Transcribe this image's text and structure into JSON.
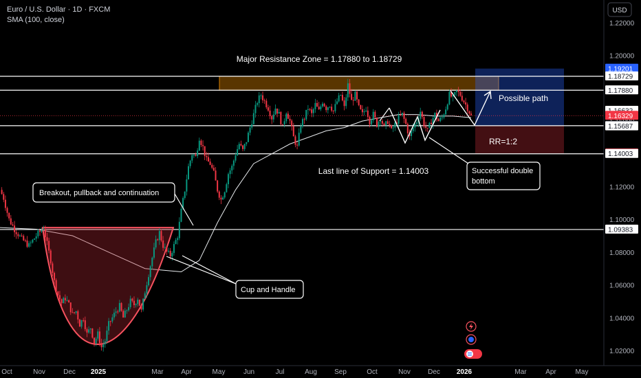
{
  "header": {
    "symbol_line": "Euro / U.S. Dollar · 1D · FXCM",
    "indicator_line": "SMA (100, close)",
    "currency_button": "USD"
  },
  "chart_data": {
    "type": "candlestick",
    "title": "Euro / U.S. Dollar · 1D · FXCM",
    "indicator": "SMA (100, close)",
    "y_axis": {
      "range": [
        1.01,
        1.235
      ],
      "ticks": [
        "1.22000",
        "1.20000",
        "1.18000",
        "1.16000",
        "1.14000",
        "1.12000",
        "1.10000",
        "1.08000",
        "1.06000",
        "1.04000",
        "1.02000"
      ],
      "tick_values": [
        1.22,
        1.2,
        1.18,
        1.16,
        1.14,
        1.12,
        1.1,
        1.08,
        1.06,
        1.04,
        1.02
      ]
    },
    "x_axis": {
      "ticks": [
        "Oct",
        "Nov",
        "Dec",
        "2025",
        "Mar",
        "Apr",
        "May",
        "Jun",
        "Jul",
        "Aug",
        "Sep",
        "Oct",
        "Nov",
        "Dec",
        "2026",
        "Mar",
        "Apr",
        "May"
      ],
      "bold_ticks": [
        "2025",
        "2026"
      ]
    },
    "price_path": [
      [
        0,
        1.118
      ],
      [
        2,
        1.113
      ],
      [
        5,
        1.1
      ],
      [
        8,
        1.094
      ],
      [
        12,
        1.088
      ],
      [
        16,
        1.084
      ],
      [
        20,
        1.09
      ],
      [
        24,
        1.095
      ],
      [
        26,
        1.085
      ],
      [
        28,
        1.075
      ],
      [
        30,
        1.062
      ],
      [
        32,
        1.054
      ],
      [
        34,
        1.049
      ],
      [
        36,
        1.052
      ],
      [
        38,
        1.048
      ],
      [
        40,
        1.042
      ],
      [
        42,
        1.044
      ],
      [
        44,
        1.036
      ],
      [
        46,
        1.04
      ],
      [
        48,
        1.03
      ],
      [
        50,
        1.034
      ],
      [
        52,
        1.025
      ],
      [
        54,
        1.03
      ],
      [
        56,
        1.022
      ],
      [
        58,
        1.026
      ],
      [
        60,
        1.036
      ],
      [
        62,
        1.04
      ],
      [
        64,
        1.044
      ],
      [
        66,
        1.047
      ],
      [
        68,
        1.04
      ],
      [
        70,
        1.045
      ],
      [
        72,
        1.05
      ],
      [
        74,
        1.048
      ],
      [
        76,
        1.052
      ],
      [
        78,
        1.044
      ],
      [
        80,
        1.056
      ],
      [
        83,
        1.072
      ],
      [
        86,
        1.086
      ],
      [
        88,
        1.092
      ],
      [
        90,
        1.084
      ],
      [
        92,
        1.08
      ],
      [
        94,
        1.078
      ],
      [
        96,
        1.084
      ],
      [
        98,
        1.09
      ],
      [
        100,
        1.105
      ],
      [
        102,
        1.118
      ],
      [
        104,
        1.132
      ],
      [
        106,
        1.14
      ],
      [
        108,
        1.138
      ],
      [
        110,
        1.15
      ],
      [
        112,
        1.144
      ],
      [
        114,
        1.136
      ],
      [
        116,
        1.134
      ],
      [
        118,
        1.128
      ],
      [
        120,
        1.118
      ],
      [
        122,
        1.112
      ],
      [
        124,
        1.118
      ],
      [
        126,
        1.128
      ],
      [
        128,
        1.132
      ],
      [
        130,
        1.14
      ],
      [
        132,
        1.146
      ],
      [
        134,
        1.142
      ],
      [
        136,
        1.148
      ],
      [
        138,
        1.156
      ],
      [
        140,
        1.164
      ],
      [
        142,
        1.172
      ],
      [
        144,
        1.176
      ],
      [
        146,
        1.172
      ],
      [
        148,
        1.168
      ],
      [
        150,
        1.162
      ],
      [
        152,
        1.168
      ],
      [
        154,
        1.164
      ],
      [
        156,
        1.156
      ],
      [
        158,
        1.166
      ],
      [
        160,
        1.16
      ],
      [
        162,
        1.15
      ],
      [
        164,
        1.144
      ],
      [
        166,
        1.158
      ],
      [
        168,
        1.162
      ],
      [
        170,
        1.168
      ],
      [
        172,
        1.164
      ],
      [
        174,
        1.17
      ],
      [
        176,
        1.166
      ],
      [
        178,
        1.172
      ],
      [
        180,
        1.168
      ],
      [
        182,
        1.17
      ],
      [
        184,
        1.166
      ],
      [
        186,
        1.172
      ],
      [
        188,
        1.176
      ],
      [
        190,
        1.168
      ],
      [
        192,
        1.182
      ],
      [
        194,
        1.172
      ],
      [
        196,
        1.176
      ],
      [
        198,
        1.168
      ],
      [
        200,
        1.164
      ],
      [
        202,
        1.168
      ],
      [
        204,
        1.16
      ],
      [
        206,
        1.164
      ],
      [
        208,
        1.158
      ],
      [
        210,
        1.162
      ],
      [
        212,
        1.156
      ],
      [
        214,
        1.16
      ],
      [
        216,
        1.154
      ],
      [
        218,
        1.158
      ],
      [
        220,
        1.162
      ],
      [
        222,
        1.164
      ],
      [
        224,
        1.158
      ],
      [
        226,
        1.15
      ],
      [
        228,
        1.156
      ],
      [
        230,
        1.16
      ],
      [
        232,
        1.166
      ],
      [
        234,
        1.158
      ],
      [
        236,
        1.154
      ],
      [
        238,
        1.16
      ],
      [
        240,
        1.164
      ],
      [
        242,
        1.16
      ],
      [
        244,
        1.162
      ],
      [
        246,
        1.168
      ],
      [
        248,
        1.176
      ],
      [
        250,
        1.174
      ],
      [
        252,
        1.178
      ],
      [
        254,
        1.176
      ],
      [
        256,
        1.172
      ],
      [
        258,
        1.168
      ],
      [
        260,
        1.163
      ]
    ],
    "sma_100": [
      [
        0,
        1.095
      ],
      [
        20,
        1.094
      ],
      [
        40,
        1.09
      ],
      [
        60,
        1.08
      ],
      [
        80,
        1.07
      ],
      [
        100,
        1.068
      ],
      [
        110,
        1.075
      ],
      [
        120,
        1.098
      ],
      [
        130,
        1.118
      ],
      [
        140,
        1.134
      ],
      [
        150,
        1.14
      ],
      [
        160,
        1.146
      ],
      [
        170,
        1.15
      ],
      [
        180,
        1.154
      ],
      [
        190,
        1.156
      ],
      [
        200,
        1.16
      ],
      [
        210,
        1.162
      ],
      [
        220,
        1.164
      ],
      [
        230,
        1.164
      ],
      [
        240,
        1.163
      ],
      [
        250,
        1.163
      ],
      [
        260,
        1.162
      ]
    ],
    "horizontal_levels": [
      {
        "label": "1.18729",
        "value": 1.18729,
        "color": "#ffffff"
      },
      {
        "label": "1.17880",
        "value": 1.1788,
        "color": "#ffffff"
      },
      {
        "label": "1.15717",
        "value": 1.15717,
        "color": "#ffffff"
      },
      {
        "label": "1.14003",
        "value": 1.14003,
        "color": "#ffffff"
      },
      {
        "label": "1.09383",
        "value": 1.09383,
        "color": "#ffffff"
      }
    ],
    "axis_price_tags": [
      {
        "label": "1.19201",
        "value": 1.19201,
        "bg": "#2962ff",
        "fg": "#ffffff"
      },
      {
        "label": "1.18729",
        "value": 1.18729,
        "bg": "#ffffff",
        "fg": "#131722"
      },
      {
        "label": "1.17880",
        "value": 1.1788,
        "bg": "#ffffff",
        "fg": "#131722"
      },
      {
        "label": "1.16632",
        "value": 1.16632,
        "bg": "#ffffff",
        "fg": "#131722"
      },
      {
        "label": "1.16329",
        "value": 1.16329,
        "bg": "#f23645",
        "fg": "#ffffff"
      },
      {
        "label": "1.15717",
        "value": 1.15717,
        "bg": "#5d606b",
        "fg": "#ffffff"
      },
      {
        "label": "1.15687",
        "value": 1.15687,
        "bg": "#ffffff",
        "fg": "#131722"
      },
      {
        "label": "1.14026",
        "value": 1.14026,
        "bg": "#f23645",
        "fg": "#ffffff"
      },
      {
        "label": "1.14003",
        "value": 1.14003,
        "bg": "#ffffff",
        "fg": "#131722"
      },
      {
        "label": "1.09383",
        "value": 1.09383,
        "bg": "#ffffff",
        "fg": "#131722"
      }
    ],
    "annotations": {
      "resistance_title": "Major Resistance Zone = 1.17880 to 1.18729",
      "support_title": "Last line of Support = 1.14003",
      "possible_path": "Possible path",
      "rr": "RR=1:2",
      "breakout_box": "Breakout, pullback and continuation",
      "cup_box": "Cup and Handle",
      "double_bottom_box": [
        "Successful double",
        "bottom"
      ]
    },
    "position": {
      "entry": 1.15717,
      "target": 1.19201,
      "stop": 1.14026
    },
    "colors": {
      "up": "#089981",
      "down": "#f23645",
      "sma": "#e9ecef",
      "resistance_zone": "#ff9800",
      "target_zone": "#2962ff",
      "stop_zone": "#f23645",
      "cup": "#f7525f"
    }
  }
}
